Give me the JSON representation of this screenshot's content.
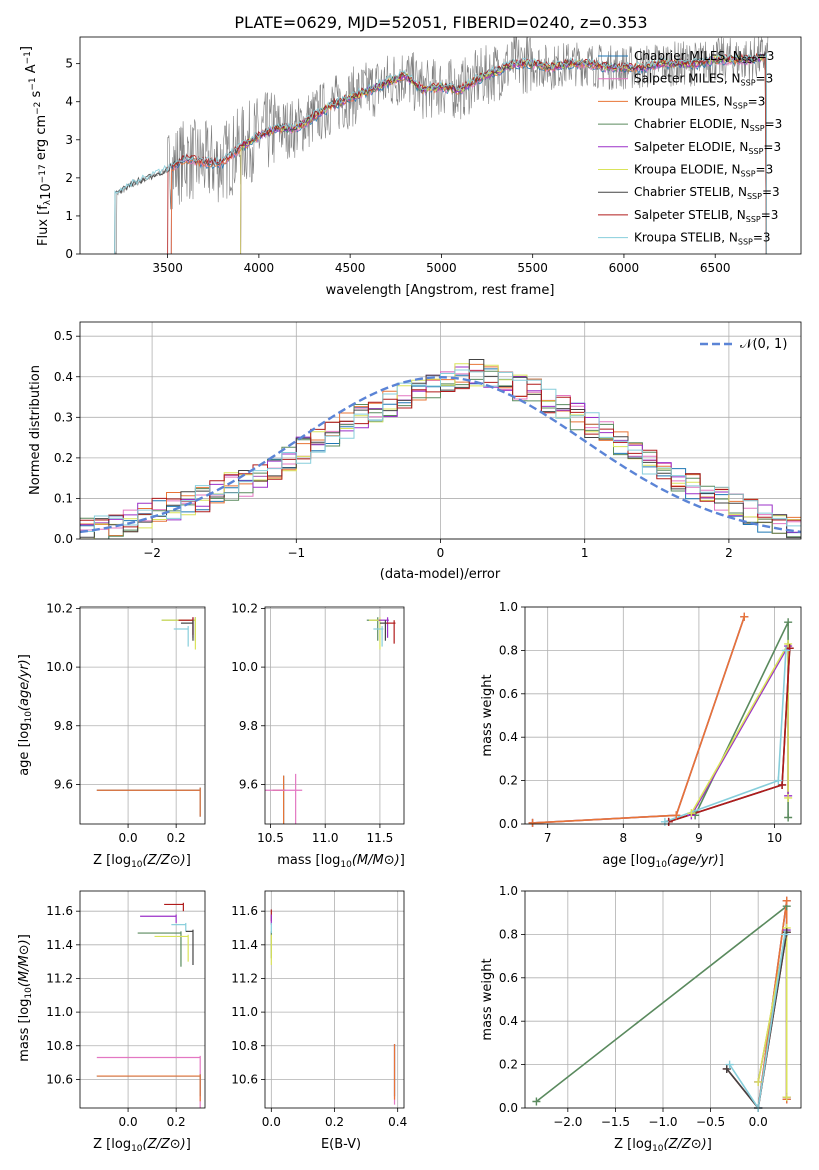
{
  "figure_title": "PLATE=0629, MJD=52051, FIBERID=0240, z=0.353",
  "colors": {
    "Chabrier MILES": "#1f77b4",
    "Salpeter MILES": "#e377c2",
    "Kroupa MILES": "#e87436",
    "Chabrier ELODIE": "#5a8a5e",
    "Salpeter ELODIE": "#9b30c8",
    "Kroupa ELODIE": "#d9e35a",
    "Chabrier STELIB": "#444444",
    "Salpeter STELIB": "#b01b1b",
    "Kroupa STELIB": "#87cedb",
    "data": "#7f7f7f",
    "gaussian": "#5b84d6"
  },
  "chart_data": [
    {
      "type": "line",
      "panel": "spectrum",
      "xlabel": "wavelength [Angstrom, rest frame]",
      "ylabel": "Flux [f_λ 10^-17 erg cm^-2 s^-1 A^-1]",
      "xlim": [
        3020,
        6970
      ],
      "ylim": [
        0,
        5.7
      ],
      "xticks": [
        3500,
        4000,
        4500,
        5000,
        5500,
        6000,
        6500
      ],
      "yticks": [
        0,
        1,
        2,
        3,
        4,
        5
      ],
      "legend_position": "top-right",
      "legend": [
        {
          "label": "Chabrier MILES, N",
          "sub": "SSP",
          "suffix": "=3"
        },
        {
          "label": "Salpeter MILES, N",
          "sub": "SSP",
          "suffix": "=3"
        },
        {
          "label": "Kroupa MILES, N",
          "sub": "SSP",
          "suffix": "=3"
        },
        {
          "label": "Chabrier ELODIE, N",
          "sub": "SSP",
          "suffix": "=3"
        },
        {
          "label": "Salpeter ELODIE, N",
          "sub": "SSP",
          "suffix": "=3"
        },
        {
          "label": "Kroupa ELODIE, N",
          "sub": "SSP",
          "suffix": "=3"
        },
        {
          "label": "Chabrier STELIB, N",
          "sub": "SSP",
          "suffix": "=3"
        },
        {
          "label": "Salpeter STELIB, N",
          "sub": "SSP",
          "suffix": "=3"
        },
        {
          "label": "Kroupa STELIB, N",
          "sub": "SSP",
          "suffix": "=3"
        }
      ],
      "continuum": {
        "x": [
          3200,
          3300,
          3400,
          3500,
          3600,
          3700,
          3800,
          3900,
          4000,
          4100,
          4200,
          4300,
          4400,
          4500,
          4600,
          4700,
          4800,
          4900,
          5000,
          5100,
          5200,
          5300,
          5400,
          5500,
          5600,
          5700,
          5800,
          5900,
          6000,
          6100,
          6200,
          6300,
          6400,
          6500,
          6600,
          6700,
          6780
        ],
        "y": [
          1.5,
          1.8,
          2.0,
          2.2,
          2.5,
          2.4,
          2.4,
          2.8,
          3.1,
          3.3,
          3.3,
          3.6,
          3.9,
          4.1,
          4.3,
          4.5,
          4.7,
          4.3,
          4.4,
          4.3,
          4.6,
          4.8,
          5.0,
          5.0,
          4.9,
          5.0,
          5.0,
          4.9,
          4.9,
          4.9,
          5.0,
          5.0,
          5.0,
          5.1,
          5.1,
          5.1,
          5.2
        ]
      }
    },
    {
      "type": "line",
      "panel": "residual_histogram",
      "xlabel": "(data-model)/error",
      "ylabel": "Normed distribution",
      "xlim": [
        -2.5,
        2.5
      ],
      "ylim": [
        0,
        0.535
      ],
      "xticks": [
        -2,
        -1,
        0,
        1,
        2
      ],
      "yticks": [
        0.0,
        0.1,
        0.2,
        0.3,
        0.4,
        0.5
      ],
      "grid": true,
      "legend_position": "top-right",
      "gaussian_label": "𝒩(0, 1)",
      "bin_width": 0.1,
      "bin_centers_from": -2.45,
      "hist_base": [
        0.02,
        0.03,
        0.04,
        0.05,
        0.06,
        0.07,
        0.08,
        0.09,
        0.1,
        0.11,
        0.13,
        0.14,
        0.16,
        0.18,
        0.2,
        0.22,
        0.24,
        0.26,
        0.28,
        0.3,
        0.32,
        0.33,
        0.35,
        0.37,
        0.38,
        0.39,
        0.4,
        0.41,
        0.4,
        0.38,
        0.37,
        0.36,
        0.34,
        0.32,
        0.3,
        0.28,
        0.26,
        0.23,
        0.21,
        0.19,
        0.17,
        0.15,
        0.13,
        0.11,
        0.1,
        0.08,
        0.07,
        0.05,
        0.04,
        0.03
      ]
    },
    {
      "type": "scatter",
      "panel": "age_vs_Z",
      "xlabel": "Z [log10(Z/Z⊙)]",
      "ylabel": "age [log10(age/yr)]",
      "xlim": [
        -0.2,
        0.32
      ],
      "ylim": [
        9.465,
        10.205
      ],
      "xticks": [
        0.0,
        0.2
      ],
      "yticks": [
        9.6,
        9.8,
        10.0,
        10.2
      ],
      "points": [
        {
          "model": "Chabrier MILES",
          "x": 0.3,
          "y": 9.58,
          "xerr": 0.43,
          "yerr": 0.09
        },
        {
          "model": "Kroupa MILES",
          "x": 0.3,
          "y": 9.58,
          "xerr": 0.43,
          "yerr": 0.09
        },
        {
          "model": "Chabrier ELODIE",
          "x": 0.28,
          "y": 10.16,
          "xerr": 0.14,
          "yerr": 0.07
        },
        {
          "model": "Salpeter ELODIE",
          "x": 0.27,
          "y": 10.16,
          "xerr": 0.06,
          "yerr": 0.06
        },
        {
          "model": "Kroupa ELODIE",
          "x": 0.28,
          "y": 10.16,
          "xerr": 0.14,
          "yerr": 0.1
        },
        {
          "model": "Salpeter STELIB",
          "x": 0.27,
          "y": 10.16,
          "xerr": 0.06,
          "yerr": 0.05
        },
        {
          "model": "Kroupa STELIB",
          "x": 0.25,
          "y": 10.13,
          "xerr": 0.06,
          "yerr": 0.06
        },
        {
          "model": "Chabrier STELIB",
          "x": 0.27,
          "y": 10.15,
          "xerr": 0.05,
          "yerr": 0.06
        }
      ]
    },
    {
      "type": "scatter",
      "panel": "age_vs_mass",
      "xlabel": "mass [log10(M/M⊙)]",
      "ylabel": "",
      "xlim": [
        10.45,
        11.72
      ],
      "ylim": [
        9.465,
        10.205
      ],
      "xticks": [
        10.5,
        11.0,
        11.5
      ],
      "yticks": [
        9.6,
        9.8,
        10.0,
        10.2
      ],
      "points": [
        {
          "model": "Chabrier MILES",
          "x": 10.62,
          "y": 9.58,
          "xerr": 0.1,
          "yerr": 0.5
        },
        {
          "model": "Kroupa MILES",
          "x": 10.62,
          "y": 9.58,
          "xerr": 0.1,
          "yerr": 0.5
        },
        {
          "model": "Salpeter MILES",
          "x": 10.73,
          "y": 9.58,
          "xerr": 0.4,
          "yerr": 0.56
        },
        {
          "model": "Chabrier ELODIE",
          "x": 11.48,
          "y": 10.16,
          "xerr": 0.1,
          "yerr": 0.07
        },
        {
          "model": "Kroupa ELODIE",
          "x": 11.5,
          "y": 10.16,
          "xerr": 0.1,
          "yerr": 0.1
        },
        {
          "model": "Salpeter ELODIE",
          "x": 11.57,
          "y": 10.16,
          "xerr": 0.08,
          "yerr": 0.06
        },
        {
          "model": "Salpeter STELIB",
          "x": 11.63,
          "y": 10.15,
          "xerr": 0.08,
          "yerr": 0.07
        },
        {
          "model": "Kroupa STELIB",
          "x": 11.52,
          "y": 10.13,
          "xerr": 0.08,
          "yerr": 0.06
        },
        {
          "model": "Chabrier STELIB",
          "x": 11.55,
          "y": 10.15,
          "xerr": 0.05,
          "yerr": 0.06
        }
      ]
    },
    {
      "type": "line",
      "panel": "mass_weight_vs_age",
      "xlabel": "age [log10(age/yr)]",
      "ylabel": "mass weight",
      "xlim": [
        6.7,
        10.35
      ],
      "ylim": [
        0,
        1
      ],
      "xticks": [
        7,
        8,
        9,
        10
      ],
      "yticks": [
        0.0,
        0.2,
        0.4,
        0.6,
        0.8,
        1.0
      ],
      "grid": true,
      "series": [
        {
          "model": "Chabrier MILES",
          "x": [
            6.8,
            8.7,
            9.6
          ],
          "y": [
            0.005,
            0.04,
            0.955
          ]
        },
        {
          "model": "Salpeter MILES",
          "x": [
            6.8,
            8.7,
            9.6
          ],
          "y": [
            0.005,
            0.04,
            0.955
          ]
        },
        {
          "model": "Kroupa MILES",
          "x": [
            6.8,
            8.7,
            9.6
          ],
          "y": [
            0.005,
            0.04,
            0.955
          ]
        },
        {
          "model": "Chabrier ELODIE",
          "x": [
            8.95,
            10.18,
            10.18
          ],
          "y": [
            0.04,
            0.93,
            0.03
          ]
        },
        {
          "model": "Salpeter ELODIE",
          "x": [
            8.9,
            10.18,
            10.18
          ],
          "y": [
            0.04,
            0.82,
            0.13
          ]
        },
        {
          "model": "Kroupa ELODIE",
          "x": [
            8.9,
            10.18,
            10.18
          ],
          "y": [
            0.05,
            0.83,
            0.12
          ]
        },
        {
          "model": "Chabrier STELIB",
          "x": [
            8.6,
            10.1,
            10.2
          ],
          "y": [
            0.01,
            0.18,
            0.81
          ]
        },
        {
          "model": "Salpeter STELIB",
          "x": [
            8.6,
            10.1,
            10.2
          ],
          "y": [
            0.01,
            0.18,
            0.81
          ]
        },
        {
          "model": "Kroupa STELIB",
          "x": [
            8.55,
            10.05,
            10.15
          ],
          "y": [
            0.01,
            0.2,
            0.8
          ]
        }
      ]
    },
    {
      "type": "scatter",
      "panel": "mass_vs_Z",
      "xlabel": "Z [log10(Z/Z⊙)]",
      "ylabel": "mass [log10(M/M⊙)]",
      "xlim": [
        -0.2,
        0.32
      ],
      "ylim": [
        10.43,
        11.72
      ],
      "xticks": [
        0.0,
        0.2
      ],
      "yticks": [
        10.6,
        10.8,
        11.0,
        11.2,
        11.4,
        11.6
      ],
      "points": [
        {
          "model": "Salpeter MILES",
          "x": 0.3,
          "y": 10.73,
          "xerr": 0.43,
          "yerr": 0.42
        },
        {
          "model": "Chabrier MILES",
          "x": 0.3,
          "y": 10.62,
          "xerr": 0.43,
          "yerr": 0.12
        },
        {
          "model": "Kroupa MILES",
          "x": 0.3,
          "y": 10.62,
          "xerr": 0.43,
          "yerr": 0.15
        },
        {
          "model": "Salpeter STELIB",
          "x": 0.23,
          "y": 11.64,
          "xerr": 0.08,
          "yerr": 0.04
        },
        {
          "model": "Salpeter ELODIE",
          "x": 0.2,
          "y": 11.57,
          "xerr": 0.15,
          "yerr": 0.04
        },
        {
          "model": "Kroupa STELIB",
          "x": 0.24,
          "y": 11.52,
          "xerr": 0.06,
          "yerr": 0.04
        },
        {
          "model": "Chabrier ELODIE",
          "x": 0.22,
          "y": 11.47,
          "xerr": 0.18,
          "yerr": 0.2
        },
        {
          "model": "Kroupa ELODIE",
          "x": 0.25,
          "y": 11.45,
          "xerr": 0.14,
          "yerr": 0.15
        },
        {
          "model": "Chabrier STELIB",
          "x": 0.27,
          "y": 11.48,
          "xerr": 0.03,
          "yerr": 0.2
        }
      ]
    },
    {
      "type": "scatter",
      "panel": "mass_vs_EBV",
      "xlabel": "E(B-V)",
      "ylabel": "",
      "xlim": [
        -0.02,
        0.42
      ],
      "ylim": [
        10.43,
        11.72
      ],
      "xticks": [
        0.0,
        0.2,
        0.4
      ],
      "yticks": [
        10.6,
        10.8,
        11.0,
        11.2,
        11.4,
        11.6
      ],
      "points": [
        {
          "model": "Salpeter STELIB",
          "x": 0.0,
          "y": 11.6,
          "yerr": 0.06
        },
        {
          "model": "Salpeter ELODIE",
          "x": 0.0,
          "y": 11.57,
          "yerr": 0.05
        },
        {
          "model": "Chabrier ELODIE",
          "x": 0.0,
          "y": 11.47,
          "yerr": 0.15
        },
        {
          "model": "Kroupa ELODIE",
          "x": 0.0,
          "y": 11.45,
          "yerr": 0.17
        },
        {
          "model": "Kroupa STELIB",
          "x": 0.0,
          "y": 11.52,
          "yerr": 0.05
        },
        {
          "model": "Salpeter MILES",
          "x": 0.39,
          "y": 10.8,
          "yerr": 0.35
        },
        {
          "model": "Chabrier MILES",
          "x": 0.39,
          "y": 10.8,
          "yerr": 0.3
        },
        {
          "model": "Kroupa MILES",
          "x": 0.39,
          "y": 10.8,
          "yerr": 0.32
        }
      ]
    },
    {
      "type": "line",
      "panel": "mass_weight_vs_Z",
      "xlabel": "Z [log10(Z/Z⊙)]",
      "ylabel": "mass weight",
      "xlim": [
        -2.45,
        0.45
      ],
      "ylim": [
        0,
        1
      ],
      "xticks": [
        -2.0,
        -1.5,
        -1.0,
        -0.5,
        0.0
      ],
      "yticks": [
        0.0,
        0.2,
        0.4,
        0.6,
        0.8,
        1.0
      ],
      "grid": true,
      "series": [
        {
          "model": "Chabrier ELODIE",
          "x": [
            -2.33,
            0.3,
            0.3
          ],
          "y": [
            0.03,
            0.93,
            0.04
          ]
        },
        {
          "model": "Chabrier MILES",
          "x": [
            0.0,
            0.3,
            0.3
          ],
          "y": [
            0.0,
            0.955,
            0.04
          ]
        },
        {
          "model": "Salpeter MILES",
          "x": [
            0.0,
            0.3,
            0.3
          ],
          "y": [
            0.0,
            0.955,
            0.04
          ]
        },
        {
          "model": "Kroupa MILES",
          "x": [
            0.0,
            0.3,
            0.3
          ],
          "y": [
            0.0,
            0.955,
            0.04
          ]
        },
        {
          "model": "Salpeter ELODIE",
          "x": [
            0.0,
            0.3,
            0.3
          ],
          "y": [
            0.12,
            0.82,
            0.05
          ]
        },
        {
          "model": "Kroupa ELODIE",
          "x": [
            0.0,
            0.3,
            0.3
          ],
          "y": [
            0.12,
            0.83,
            0.05
          ]
        },
        {
          "model": "Salpeter STELIB",
          "x": [
            -0.33,
            0.0,
            0.3
          ],
          "y": [
            0.18,
            0.0,
            0.81
          ]
        },
        {
          "model": "Chabrier STELIB",
          "x": [
            -0.33,
            0.0,
            0.3
          ],
          "y": [
            0.18,
            0.0,
            0.81
          ]
        },
        {
          "model": "Kroupa STELIB",
          "x": [
            -0.3,
            0.0,
            0.28
          ],
          "y": [
            0.2,
            0.0,
            0.8
          ]
        }
      ]
    }
  ]
}
